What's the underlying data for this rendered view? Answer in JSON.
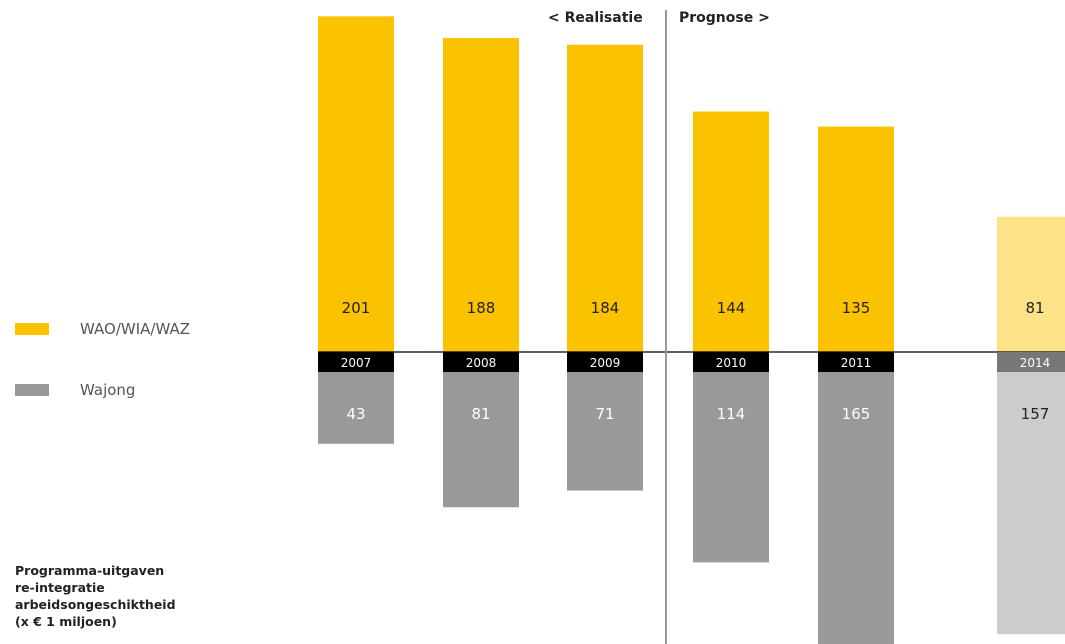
{
  "chart_data": {
    "type": "bar",
    "categories": [
      "2007",
      "2008",
      "2009",
      "2010",
      "2011",
      "2014"
    ],
    "series": [
      {
        "name": "WAO/WIA/WAZ",
        "values": [
          201,
          188,
          184,
          144,
          135,
          81
        ],
        "direction": "up",
        "color": "#fbc200",
        "forecast_color": "#fde287"
      },
      {
        "name": "Wajong",
        "values": [
          43,
          81,
          71,
          114,
          165,
          157
        ],
        "direction": "down",
        "color": "#999999",
        "forecast_color": "#cccccc"
      }
    ],
    "forecast_categories": [
      "2014"
    ],
    "period_labels": {
      "realisation": "< Realisatie",
      "forecast": "Prognose >"
    },
    "legend_position": "left",
    "grid": false
  },
  "caption": [
    "Programma-uitgaven",
    "re-integratie",
    "arbeidsongeschiktheid",
    "(x € 1 miljoen)"
  ],
  "colors": {
    "year_label_bg": "#000000",
    "forecast_year_label_bg": "#777777",
    "divider": "#999999"
  }
}
